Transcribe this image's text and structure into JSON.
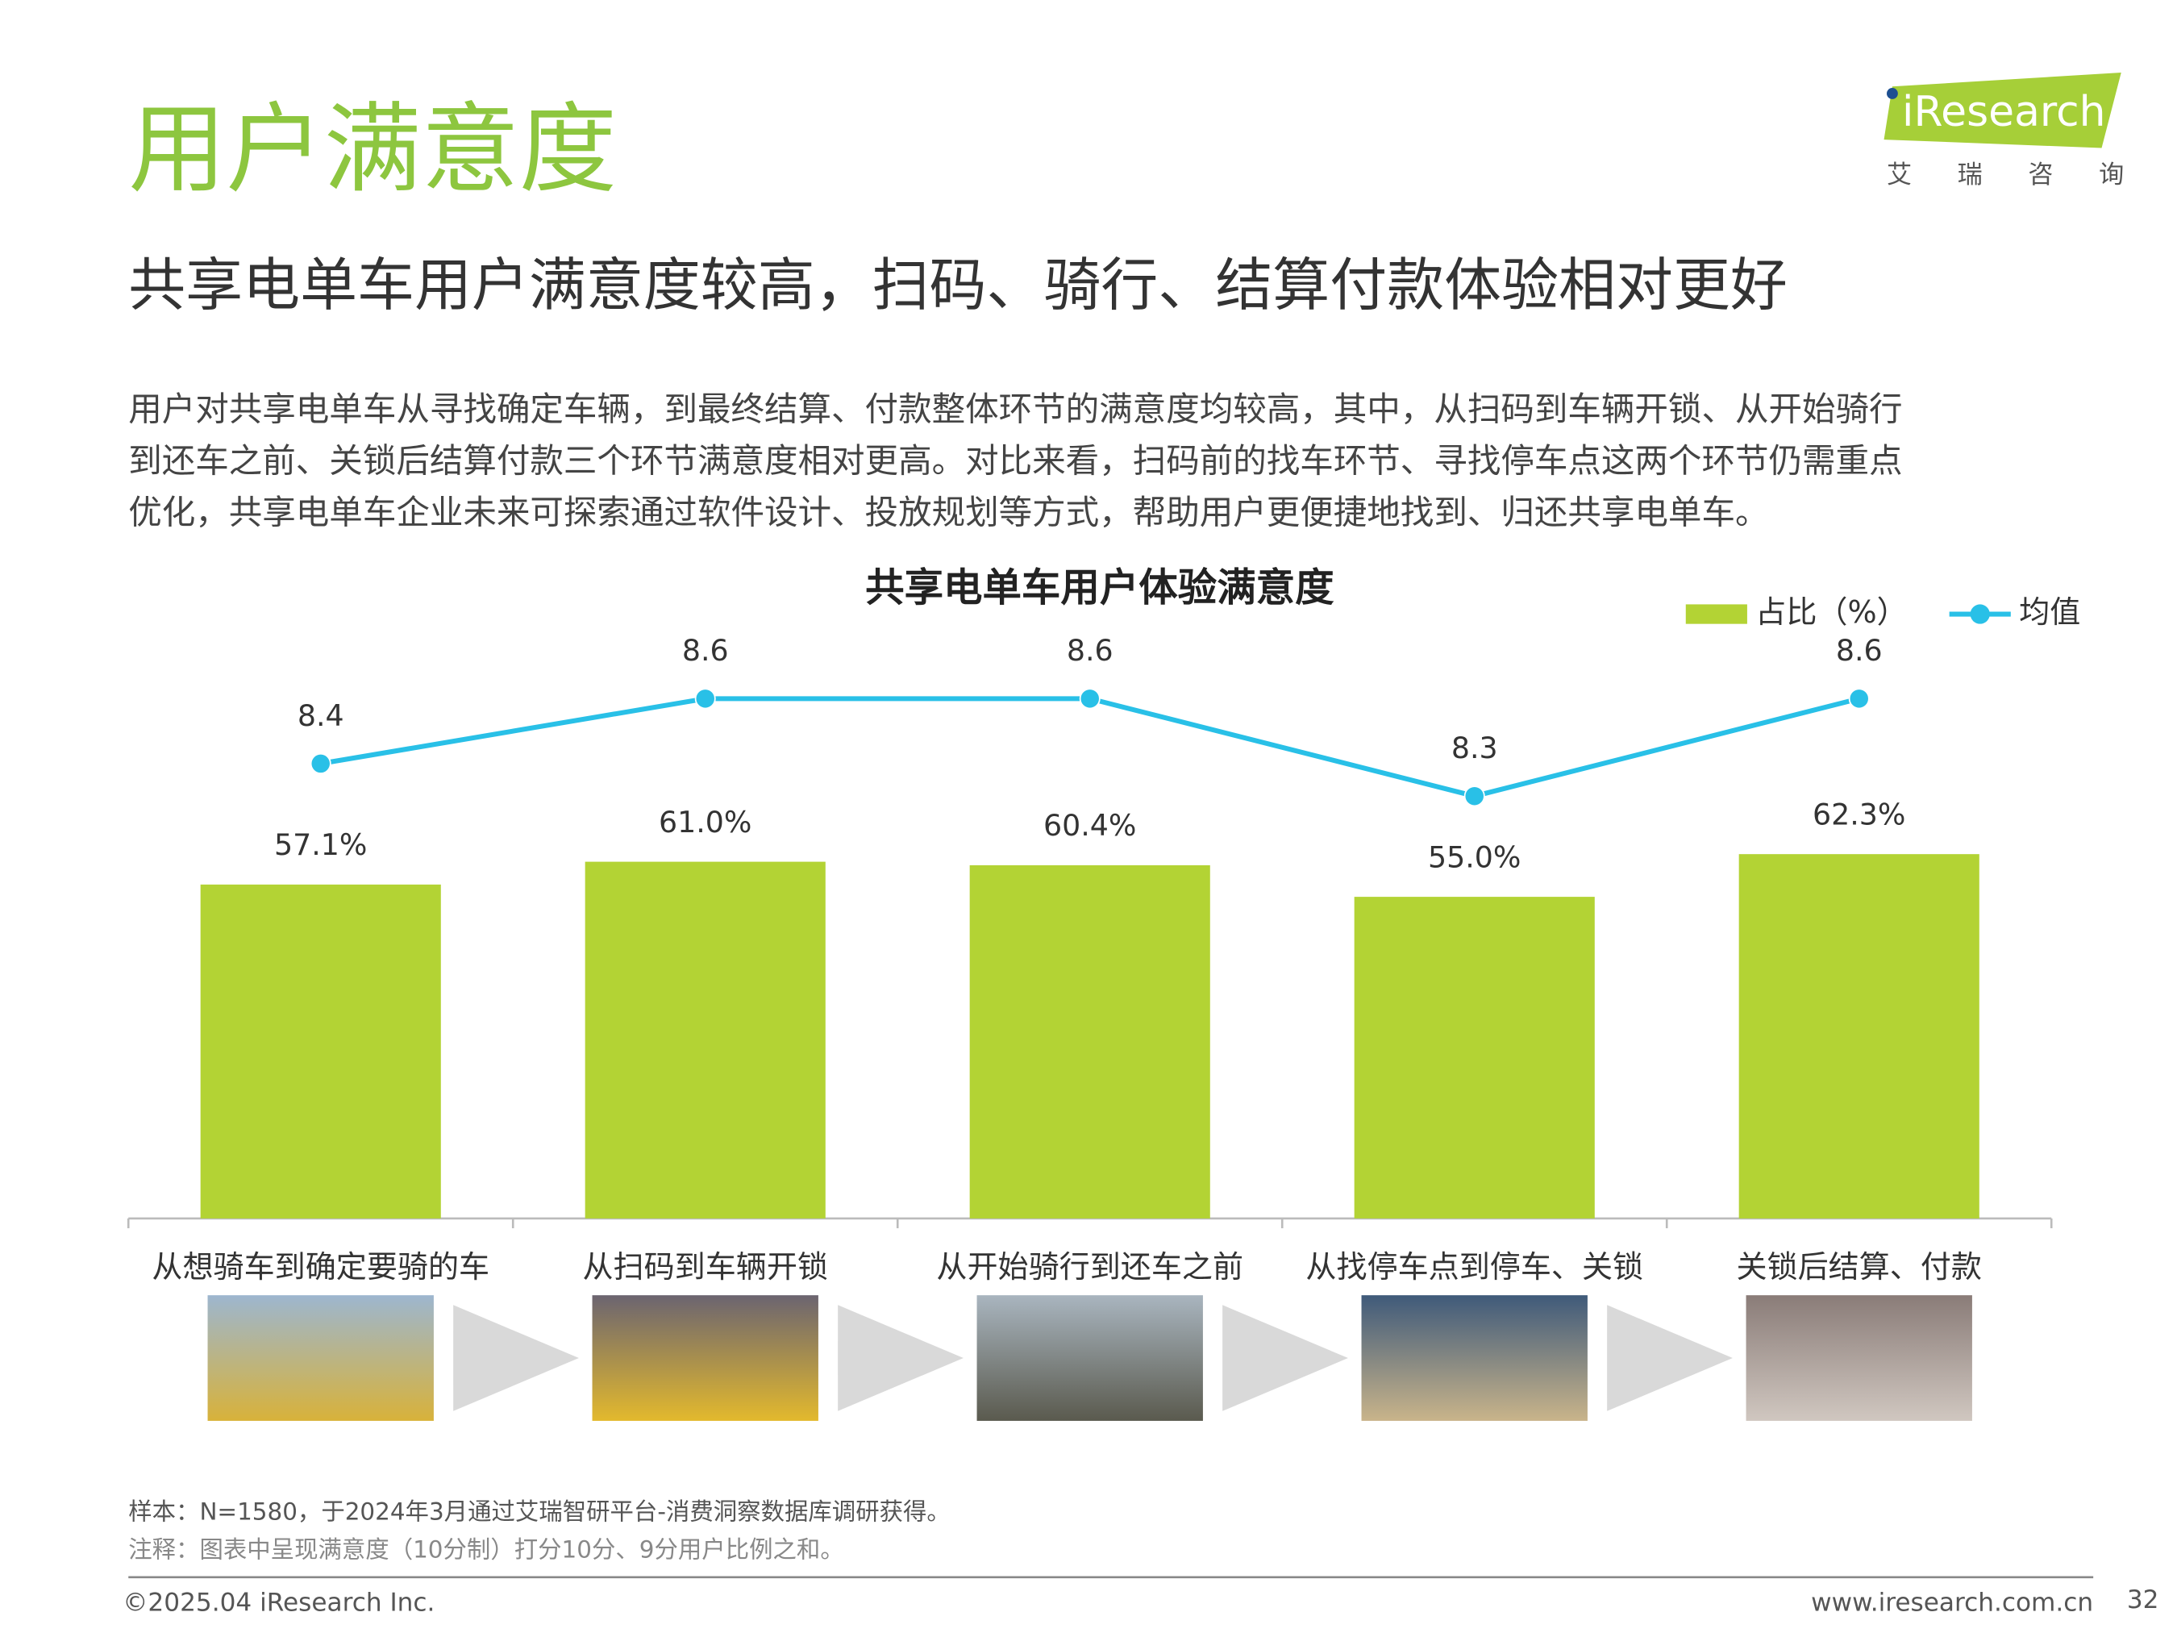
{
  "header": {
    "title": "用户满意度",
    "subtitle": "共享电单车用户满意度较高，扫码、骑行、结算付款体验相对更好",
    "logo": "iResearch",
    "logo_cn": "艾  瑞  咨  询"
  },
  "body": [
    "用户对共享电单车从寻找确定车辆，到最终结算、付款整体环节的满意度均较高，其中，从扫码到车辆开锁、从开始骑行",
    "到还车之前、关锁后结算付款三个环节满意度相对更高。对比来看，扫码前的找车环节、寻找停车点这两个环节仍需重点",
    "优化，共享电单车企业未来可探索通过软件设计、投放规划等方式，帮助用户更便捷地找到、归还共享电单车。"
  ],
  "chart_data": {
    "type": "bar",
    "title": "共享电单车用户体验满意度",
    "categories": [
      "从想骑车到确定要骑的车",
      "从扫码到车辆开锁",
      "从开始骑行到还车之前",
      "从找停车点到停车、关锁",
      "关锁后结算、付款"
    ],
    "series": [
      {
        "name": "占比（%）",
        "type": "bar",
        "color": "#b3d334",
        "values": [
          57.1,
          61.0,
          60.4,
          55.0,
          62.3
        ],
        "value_labels": [
          "57.1%",
          "61.0%",
          "60.4%",
          "55.0%",
          "62.3%"
        ]
      },
      {
        "name": "均值",
        "type": "line",
        "axis": "y2",
        "color": "#29c0e7",
        "values": [
          8.4,
          8.6,
          8.6,
          8.3,
          8.6
        ]
      }
    ],
    "ylim": [
      0,
      100
    ],
    "y2lim": [
      7.0,
      8.8
    ],
    "legend": "top-right"
  },
  "notes": {
    "sample": "样本：N=1580，于2024年3月通过艾瑞智研平台-消费洞察数据库调研获得。",
    "remark": "注释：图表中呈现满意度（10分制）打分10分、9分用户比例之和。"
  },
  "footer": {
    "copyright": "©2025.04 iResearch Inc.",
    "website": "www.iresearch.com.cn",
    "page": "32"
  }
}
